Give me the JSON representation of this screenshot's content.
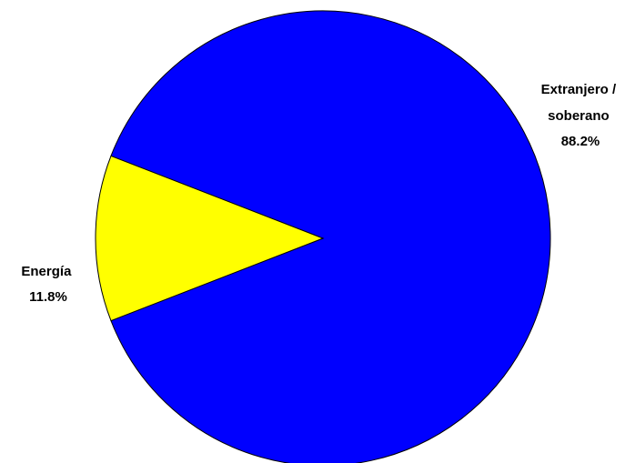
{
  "chart_data": {
    "type": "pie",
    "slices": [
      {
        "label_lines": [
          "Extranjero /",
          "soberano"
        ],
        "value": 88.2,
        "value_label": "88.2%",
        "color": "#0000FF"
      },
      {
        "label_lines": [
          "Energía"
        ],
        "value": 11.8,
        "value_label": "11.8%",
        "color": "#FFFF00"
      }
    ],
    "legend": "none",
    "border_color": "#000000"
  }
}
